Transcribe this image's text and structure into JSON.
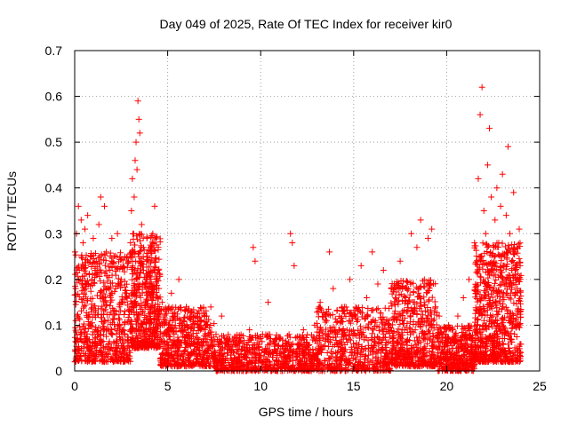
{
  "chart_data": {
    "type": "scatter",
    "title": "Day 049 of 2025, Rate Of TEC Index for receiver kir0",
    "xlabel": "GPS time / hours",
    "ylabel": "ROTI / TECUs",
    "xlim": [
      0,
      25
    ],
    "ylim": [
      0,
      0.7
    ],
    "xticks": [
      0,
      5,
      10,
      15,
      20,
      25
    ],
    "yticks": [
      0,
      0.1,
      0.2,
      0.3,
      0.4,
      0.5,
      0.6,
      0.7
    ],
    "xtick_labels": [
      "0",
      "5",
      "10",
      "15",
      "20",
      "25"
    ],
    "ytick_labels": [
      "0",
      "0.1",
      "0.2",
      "0.3",
      "0.4",
      "0.5",
      "0.6",
      "0.7"
    ],
    "grid": true,
    "marker": "+",
    "color": "#ff0000",
    "series": [
      {
        "name": "ROTI",
        "points": [
          [
            0.02,
            0.26
          ],
          [
            0.05,
            0.18
          ],
          [
            0.1,
            0.3
          ],
          [
            0.15,
            0.12
          ],
          [
            0.2,
            0.36
          ],
          [
            0.25,
            0.22
          ],
          [
            0.3,
            0.08
          ],
          [
            0.35,
            0.33
          ],
          [
            0.4,
            0.15
          ],
          [
            0.45,
            0.28
          ],
          [
            0.5,
            0.05
          ],
          [
            0.55,
            0.31
          ],
          [
            0.6,
            0.19
          ],
          [
            0.7,
            0.34
          ],
          [
            0.8,
            0.1
          ],
          [
            0.9,
            0.25
          ],
          [
            1.0,
            0.29
          ],
          [
            1.1,
            0.07
          ],
          [
            1.2,
            0.21
          ],
          [
            1.3,
            0.32
          ],
          [
            1.4,
            0.38
          ],
          [
            1.5,
            0.16
          ],
          [
            1.6,
            0.36
          ],
          [
            1.7,
            0.26
          ],
          [
            1.8,
            0.11
          ],
          [
            1.9,
            0.22
          ],
          [
            2.0,
            0.29
          ],
          [
            2.1,
            0.06
          ],
          [
            2.2,
            0.18
          ],
          [
            2.3,
            0.3
          ],
          [
            2.4,
            0.14
          ],
          [
            2.5,
            0.2
          ],
          [
            2.6,
            0.09
          ],
          [
            2.7,
            0.25
          ],
          [
            2.8,
            0.17
          ],
          [
            2.9,
            0.24
          ],
          [
            3.0,
            0.28
          ],
          [
            3.05,
            0.35
          ],
          [
            3.1,
            0.42
          ],
          [
            3.15,
            0.3
          ],
          [
            3.2,
            0.38
          ],
          [
            3.25,
            0.46
          ],
          [
            3.3,
            0.5
          ],
          [
            3.35,
            0.44
          ],
          [
            3.4,
            0.59
          ],
          [
            3.45,
            0.55
          ],
          [
            3.5,
            0.52
          ],
          [
            3.6,
            0.32
          ],
          [
            3.7,
            0.22
          ],
          [
            3.8,
            0.15
          ],
          [
            3.9,
            0.2
          ],
          [
            4.0,
            0.18
          ],
          [
            4.1,
            0.26
          ],
          [
            4.2,
            0.3
          ],
          [
            4.3,
            0.36
          ],
          [
            4.4,
            0.12
          ],
          [
            4.5,
            0.22
          ],
          [
            4.6,
            0.08
          ],
          [
            4.7,
            0.15
          ],
          [
            4.8,
            0.1
          ],
          [
            4.9,
            0.13
          ],
          [
            5.0,
            0.09
          ],
          [
            5.2,
            0.17
          ],
          [
            5.4,
            0.12
          ],
          [
            5.6,
            0.2
          ],
          [
            5.8,
            0.1
          ],
          [
            6.0,
            0.14
          ],
          [
            6.2,
            0.07
          ],
          [
            6.4,
            0.12
          ],
          [
            6.6,
            0.06
          ],
          [
            6.8,
            0.11
          ],
          [
            7.0,
            0.09
          ],
          [
            7.3,
            0.05
          ],
          [
            7.6,
            0.08
          ],
          [
            7.9,
            0.12
          ],
          [
            8.2,
            0.04
          ],
          [
            8.5,
            0.07
          ],
          [
            8.8,
            0.03
          ],
          [
            9.1,
            0.06
          ],
          [
            9.4,
            0.09
          ],
          [
            9.6,
            0.27
          ],
          [
            9.7,
            0.24
          ],
          [
            9.8,
            0.05
          ],
          [
            10.1,
            0.08
          ],
          [
            10.4,
            0.15
          ],
          [
            10.7,
            0.04
          ],
          [
            11.0,
            0.07
          ],
          [
            11.3,
            0.05
          ],
          [
            11.6,
            0.3
          ],
          [
            11.7,
            0.28
          ],
          [
            11.8,
            0.23
          ],
          [
            12.0,
            0.06
          ],
          [
            12.3,
            0.09
          ],
          [
            12.6,
            0.04
          ],
          [
            12.9,
            0.1
          ],
          [
            13.2,
            0.15
          ],
          [
            13.5,
            0.12
          ],
          [
            13.7,
            0.26
          ],
          [
            13.9,
            0.18
          ],
          [
            14.2,
            0.09
          ],
          [
            14.5,
            0.14
          ],
          [
            14.8,
            0.2
          ],
          [
            15.1,
            0.12
          ],
          [
            15.4,
            0.23
          ],
          [
            15.7,
            0.16
          ],
          [
            16.0,
            0.26
          ],
          [
            16.3,
            0.19
          ],
          [
            16.6,
            0.22
          ],
          [
            16.9,
            0.11
          ],
          [
            17.2,
            0.18
          ],
          [
            17.5,
            0.24
          ],
          [
            17.8,
            0.16
          ],
          [
            18.1,
            0.3
          ],
          [
            18.4,
            0.27
          ],
          [
            18.6,
            0.33
          ],
          [
            18.8,
            0.2
          ],
          [
            19.0,
            0.29
          ],
          [
            19.2,
            0.31
          ],
          [
            19.4,
            0.14
          ],
          [
            19.6,
            0.12
          ],
          [
            19.8,
            0.08
          ],
          [
            20.0,
            0.06
          ],
          [
            20.3,
            0.09
          ],
          [
            20.6,
            0.12
          ],
          [
            20.9,
            0.16
          ],
          [
            21.2,
            0.2
          ],
          [
            21.5,
            0.28
          ],
          [
            21.7,
            0.42
          ],
          [
            21.8,
            0.56
          ],
          [
            21.9,
            0.62
          ],
          [
            22.0,
            0.35
          ],
          [
            22.1,
            0.3
          ],
          [
            22.2,
            0.45
          ],
          [
            22.3,
            0.53
          ],
          [
            22.4,
            0.38
          ],
          [
            22.5,
            0.22
          ],
          [
            22.6,
            0.33
          ],
          [
            22.7,
            0.4
          ],
          [
            22.8,
            0.28
          ],
          [
            22.9,
            0.36
          ],
          [
            23.0,
            0.43
          ],
          [
            23.1,
            0.25
          ],
          [
            23.2,
            0.34
          ],
          [
            23.3,
            0.49
          ],
          [
            23.4,
            0.3
          ],
          [
            23.5,
            0.22
          ],
          [
            23.6,
            0.39
          ],
          [
            23.7,
            0.26
          ],
          [
            23.8,
            0.18
          ],
          [
            23.9,
            0.31
          ],
          [
            23.95,
            0.23
          ]
        ]
      }
    ],
    "density_bands": [
      {
        "x_start": 0.0,
        "x_end": 3.0,
        "y_low": 0.02,
        "y_high": 0.26,
        "n": 600
      },
      {
        "x_start": 3.0,
        "x_end": 4.6,
        "y_low": 0.05,
        "y_high": 0.3,
        "n": 500
      },
      {
        "x_start": 4.6,
        "x_end": 7.5,
        "y_low": 0.01,
        "y_high": 0.14,
        "n": 500
      },
      {
        "x_start": 7.5,
        "x_end": 13.0,
        "y_low": 0.0,
        "y_high": 0.08,
        "n": 700
      },
      {
        "x_start": 13.0,
        "x_end": 17.0,
        "y_low": 0.0,
        "y_high": 0.14,
        "n": 550
      },
      {
        "x_start": 17.0,
        "x_end": 19.5,
        "y_low": 0.01,
        "y_high": 0.2,
        "n": 500
      },
      {
        "x_start": 19.5,
        "x_end": 21.5,
        "y_low": 0.0,
        "y_high": 0.1,
        "n": 400
      },
      {
        "x_start": 21.5,
        "x_end": 24.0,
        "y_low": 0.02,
        "y_high": 0.28,
        "n": 700
      }
    ]
  }
}
